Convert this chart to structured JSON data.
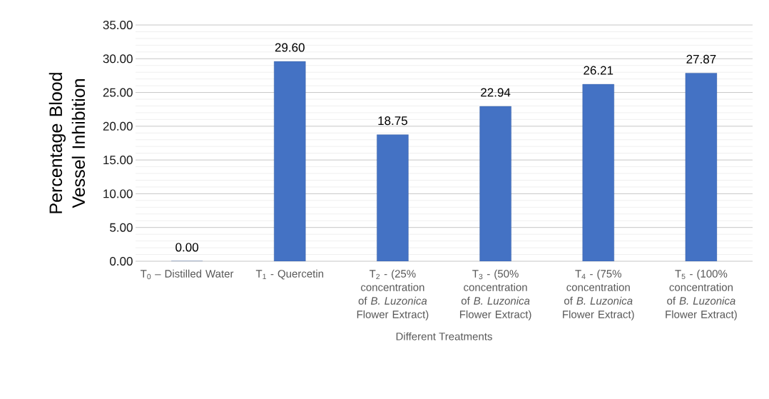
{
  "chart_data": {
    "type": "bar",
    "xlabel": "Different Treatments",
    "ylabel": "Percentage Blood Vessel Inhibition",
    "categories": [
      "T$_{0}$ – Distilled Water",
      "T$_{1}$ - Quercetin",
      "T$_{2}$ - (25% concentration of *B. Luzonica* Flower Extract)",
      "T$_{3}$ - (50% concentration of *B. Luzonica* Flower Extract)",
      "T$_{4}$ - (75% concentration of *B. Luzonica* Flower Extract)",
      "T$_{5}$ - (100% concentration of *B. Luzonica* Flower Extract)"
    ],
    "values": [
      0.0,
      29.6,
      18.75,
      22.94,
      26.21,
      27.87
    ],
    "value_labels": [
      "0.00",
      "29.60",
      "18.75",
      "22.94",
      "26.21",
      "27.87"
    ],
    "color": "#4472c4",
    "ylim": [
      0,
      35
    ],
    "yticks": [
      {
        "value": 0,
        "label": "0.00"
      },
      {
        "value": 5,
        "label": "5.00"
      },
      {
        "value": 10,
        "label": "10.00"
      },
      {
        "value": 15,
        "label": "15.00"
      },
      {
        "value": 20,
        "label": "20.00"
      },
      {
        "value": 25,
        "label": "25.00"
      },
      {
        "value": 30,
        "label": "30.00"
      },
      {
        "value": 35,
        "label": "35.00"
      }
    ],
    "grid": "y"
  }
}
